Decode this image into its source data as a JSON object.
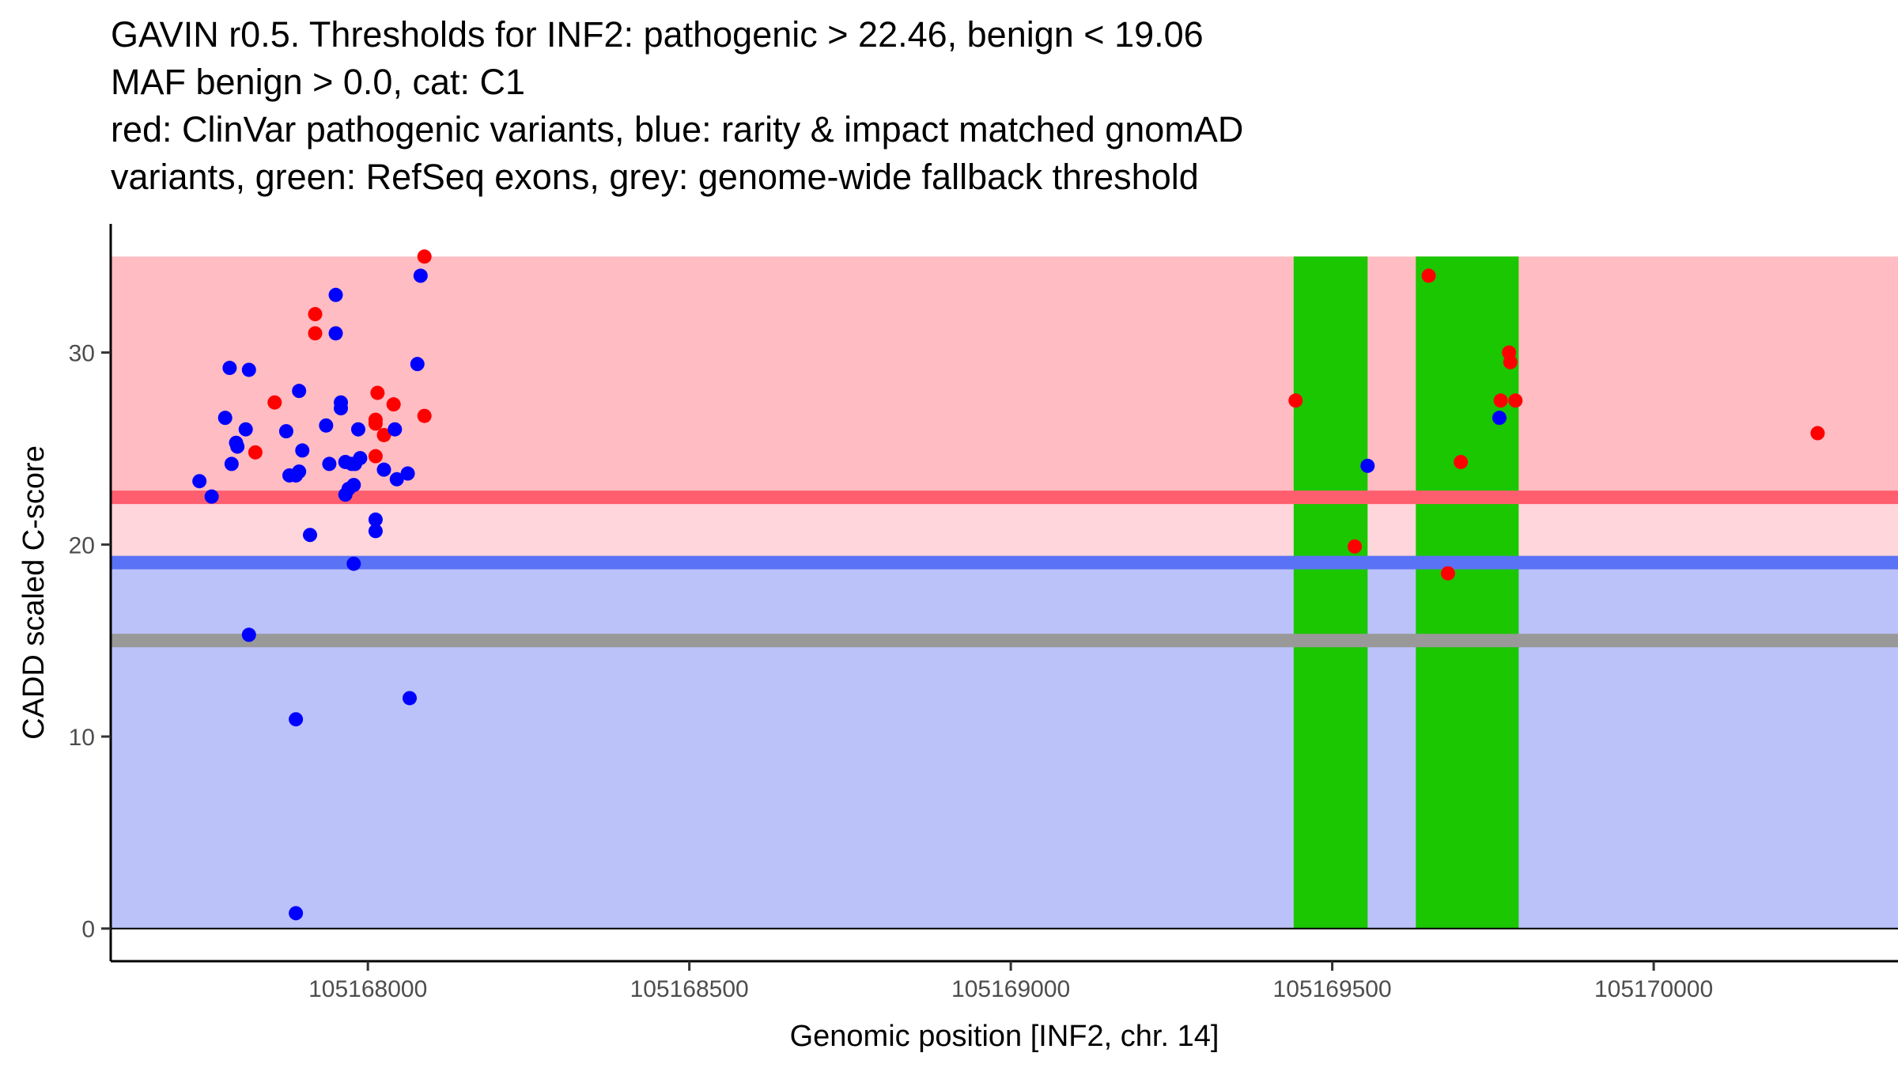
{
  "chart_data": {
    "type": "scatter",
    "title_lines": [
      "GAVIN r0.5. Thresholds for INF2: pathogenic > 22.46, benign < 19.06",
      "MAF benign > 0.0, cat: C1",
      "red: ClinVar pathogenic variants, blue: rarity & impact matched gnomAD",
      "variants, green: RefSeq exons, grey: genome-wide fallback threshold"
    ],
    "xlabel": "Genomic position [INF2, chr. 14]",
    "ylabel": "CADD scaled C-score",
    "xlim": [
      105167600,
      105170380
    ],
    "ylim": [
      -1.7,
      36.7
    ],
    "x_ticks": [
      105168000,
      105168500,
      105169000,
      105169500,
      105170000
    ],
    "x_tick_labels": [
      "105168000",
      "105168500",
      "105169000",
      "105169500",
      "105170000"
    ],
    "y_ticks": [
      0,
      10,
      20,
      30
    ],
    "y_tick_labels": [
      "0",
      "10",
      "20",
      "30"
    ],
    "thresholds": {
      "pathogenic": 22.46,
      "benign": 19.06,
      "fallback": 15
    },
    "background_bands": [
      {
        "name": "pathogenic-zone",
        "y0": 22.46,
        "y1": 35,
        "color": "#ffbcc2"
      },
      {
        "name": "uncertain-zone",
        "y0": 19.06,
        "y1": 22.46,
        "color": "#ffd6db"
      },
      {
        "name": "benign-zone",
        "y0": 0,
        "y1": 19.06,
        "color": "#bbc1f9"
      }
    ],
    "threshold_lines": [
      {
        "name": "pathogenic-threshold",
        "y": 22.46,
        "color": "#ff5e6f"
      },
      {
        "name": "benign-threshold",
        "y": 19.06,
        "color": "#5a72f5"
      },
      {
        "name": "fallback-threshold",
        "y": 15,
        "color": "#999999"
      }
    ],
    "exons": [
      {
        "start": 105169440,
        "end": 105169555,
        "y0": 0,
        "y1": 35,
        "color": "#1bc700"
      },
      {
        "start": 105169630,
        "end": 105169790,
        "y0": 0,
        "y1": 35,
        "color": "#1bc700"
      }
    ],
    "series": [
      {
        "name": "ClinVar pathogenic variants",
        "color": "#ff0000",
        "x": [
          105168088,
          105167918,
          105167918,
          105167855,
          105167825,
          105168015,
          105168088,
          105168040,
          105168012,
          105168012,
          105168025,
          105168012,
          105169443,
          105169535,
          105169650,
          105169680,
          105169700,
          105169775,
          105169777,
          105169762,
          105169785,
          105170255
        ],
        "y": [
          35,
          32,
          31,
          27.4,
          24.8,
          27.9,
          26.7,
          27.3,
          26.3,
          26.5,
          25.7,
          24.6,
          27.5,
          19.9,
          34,
          18.5,
          24.3,
          30,
          29.5,
          27.5,
          27.5,
          25.8
        ]
      },
      {
        "name": "rarity & impact matched gnomAD variants",
        "color": "#0000ff",
        "x": [
          105167738,
          105167757,
          105167785,
          105167778,
          105167788,
          105167795,
          105167797,
          105167810,
          105167815,
          105167873,
          105167888,
          105167898,
          105167878,
          105167893,
          105167893,
          105167910,
          105167935,
          105167940,
          105167950,
          105167950,
          105167958,
          105167958,
          105167965,
          105167970,
          105167965,
          105167975,
          105167978,
          105167980,
          105167978,
          105167985,
          105167988,
          105168012,
          105168012,
          105168025,
          105168042,
          105168045,
          105168062,
          105168065,
          105168082,
          105168077,
          105167888,
          105167888,
          105169555,
          105169760
        ],
        "y": [
          23.3,
          22.5,
          29.2,
          26.6,
          24.2,
          25.3,
          25.1,
          26.0,
          29.1,
          25.9,
          23.6,
          24.9,
          23.6,
          23.8,
          28.0,
          20.5,
          26.2,
          24.2,
          31.0,
          33.0,
          27.4,
          27.1,
          24.3,
          22.9,
          22.6,
          24.2,
          23.1,
          24.2,
          19.0,
          26.0,
          24.5,
          21.3,
          20.7,
          23.9,
          26.0,
          23.4,
          23.7,
          12.0,
          34.0,
          29.4,
          10.9,
          0.8,
          24.1,
          26.6
        ]
      },
      {
        "name": "rarity & impact matched gnomAD variants (outlier)",
        "color": "#0000ff",
        "x": [
          105167815
        ],
        "y": [
          15.3
        ]
      }
    ]
  }
}
